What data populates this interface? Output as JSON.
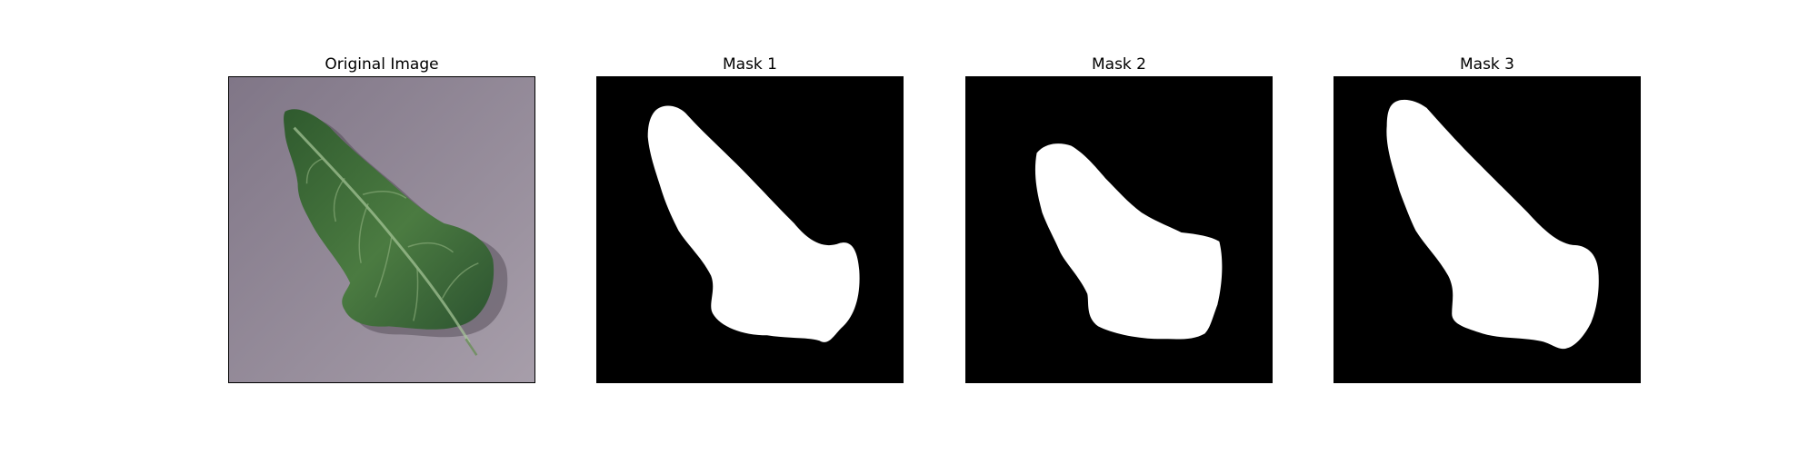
{
  "figure": {
    "panels": [
      {
        "title": "Original Image"
      },
      {
        "title": "Mask 1"
      },
      {
        "title": "Mask 2"
      },
      {
        "title": "Mask 3"
      }
    ]
  },
  "colors": {
    "background_surface": "#9a8f9e",
    "leaf_dark": "#2f5a2e",
    "leaf_mid": "#4f7d42",
    "leaf_vein": "#8faf7d",
    "mask_background": "#000000",
    "mask_foreground": "#ffffff"
  }
}
